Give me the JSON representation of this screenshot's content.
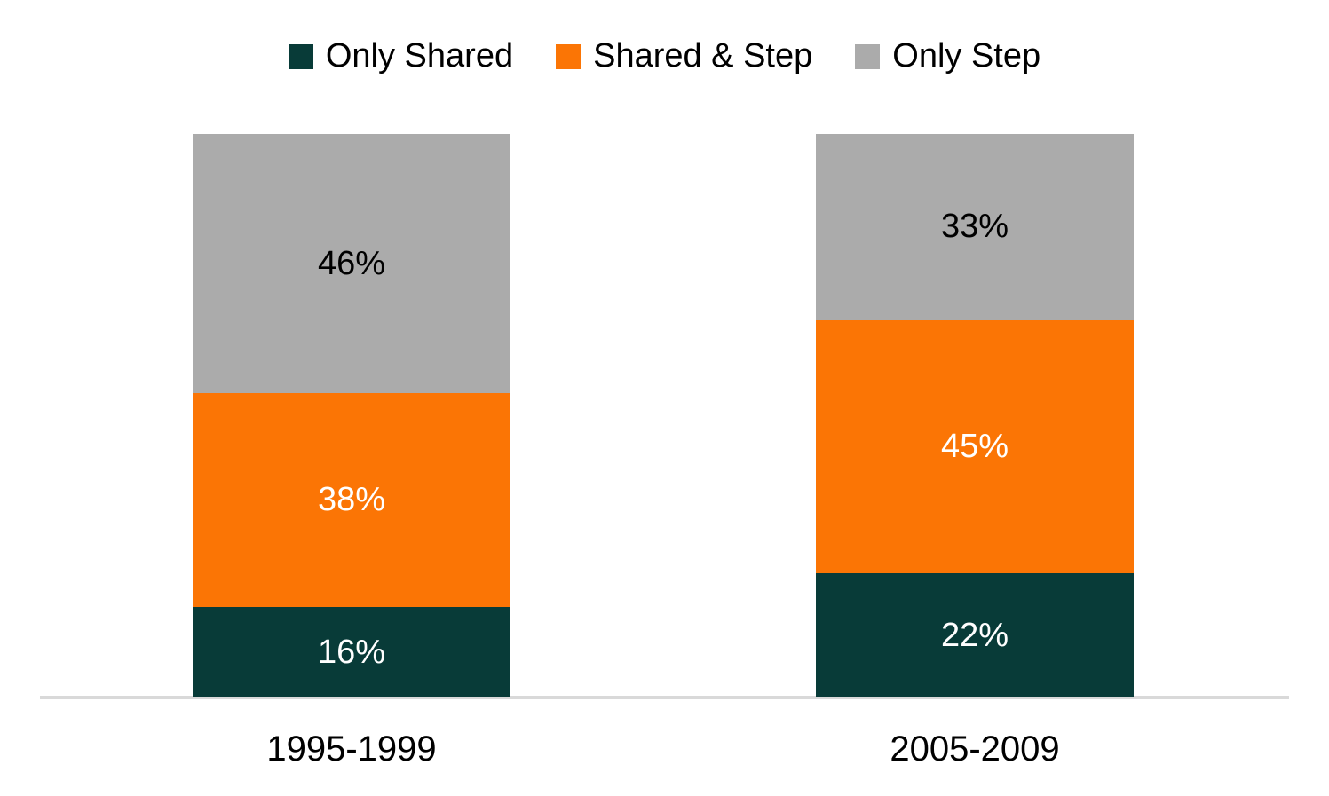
{
  "legend": {
    "items": [
      {
        "label": "Only Shared",
        "color": "#083B38"
      },
      {
        "label": "Shared & Step",
        "color": "#FB7505"
      },
      {
        "label": "Only Step",
        "color": "#ABABAB"
      }
    ]
  },
  "chart_data": {
    "type": "bar",
    "stacked": true,
    "orientation": "vertical",
    "title": "",
    "xlabel": "",
    "ylabel": "",
    "categories": [
      "1995-1999",
      "2005-2009"
    ],
    "series": [
      {
        "name": "Only Shared",
        "color": "#083B38",
        "label_color": "#FFFFFF",
        "values": [
          16,
          22
        ]
      },
      {
        "name": "Shared & Step",
        "color": "#FB7505",
        "label_color": "#FFFFFF",
        "values": [
          38,
          45
        ]
      },
      {
        "name": "Only Step",
        "color": "#ABABAB",
        "label_color": "#000000",
        "values": [
          46,
          33
        ]
      }
    ],
    "value_suffix": "%",
    "ylim": [
      0,
      100
    ],
    "grid": false,
    "legend_position": "top",
    "axis_line_color": "#D9D9D9",
    "background_color": "#FFFFFF"
  }
}
